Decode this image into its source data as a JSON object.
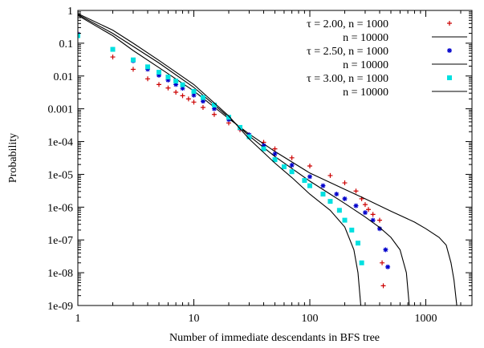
{
  "chart_data": {
    "type": "scatter",
    "title": "",
    "xlabel": "Number of immediate descendants in BFS tree",
    "ylabel": "Probability",
    "xscale": "log",
    "yscale": "log",
    "xlim": [
      1,
      2500
    ],
    "ylim": [
      1e-09,
      1
    ],
    "x_ticks": [
      {
        "value": 1,
        "label": "1"
      },
      {
        "value": 10,
        "label": "10"
      },
      {
        "value": 100,
        "label": "100"
      },
      {
        "value": 1000,
        "label": "1000"
      }
    ],
    "y_ticks": [
      {
        "value": 1,
        "label": "1"
      },
      {
        "value": 0.1,
        "label": "0.1"
      },
      {
        "value": 0.01,
        "label": "0.01"
      },
      {
        "value": 0.001,
        "label": "0.001"
      },
      {
        "value": 0.0001,
        "label": "1e-04"
      },
      {
        "value": 1e-05,
        "label": "1e-05"
      },
      {
        "value": 1e-06,
        "label": "1e-06"
      },
      {
        "value": 1e-07,
        "label": "1e-07"
      },
      {
        "value": 1e-08,
        "label": "1e-08"
      },
      {
        "value": 1e-09,
        "label": "1e-09"
      }
    ],
    "legend_position": "top-right",
    "grid": false,
    "series": [
      {
        "name": "τ = 2.00, n = 1000",
        "marker": "plus",
        "color": "#cc0000",
        "points": [
          [
            1,
            0.2
          ],
          [
            2,
            0.038
          ],
          [
            3,
            0.016
          ],
          [
            4,
            0.0082
          ],
          [
            5,
            0.0055
          ],
          [
            6,
            0.0043
          ],
          [
            7,
            0.0032
          ],
          [
            8,
            0.0025
          ],
          [
            9,
            0.002
          ],
          [
            10,
            0.0016
          ],
          [
            12,
            0.0011
          ],
          [
            15,
            0.00067
          ],
          [
            20,
            0.00037
          ],
          [
            25,
            0.00023
          ],
          [
            30,
            0.00016
          ],
          [
            40,
            9.5e-05
          ],
          [
            50,
            6e-05
          ],
          [
            70,
            3.2e-05
          ],
          [
            100,
            1.8e-05
          ],
          [
            150,
            9.2e-06
          ],
          [
            200,
            5.5e-06
          ],
          [
            250,
            3.1e-06
          ],
          [
            280,
            1.8e-06
          ],
          [
            300,
            1.2e-06
          ],
          [
            320,
            8.5e-07
          ],
          [
            350,
            6e-07
          ],
          [
            400,
            4e-07
          ],
          [
            420,
            2e-08
          ],
          [
            430,
            4e-09
          ]
        ]
      },
      {
        "name": "n = 10000",
        "marker": "line",
        "color": "#000000",
        "points": [
          [
            1,
            0.7
          ],
          [
            2,
            0.17
          ],
          [
            3,
            0.06
          ],
          [
            5,
            0.018
          ],
          [
            10,
            0.0035
          ],
          [
            20,
            0.0005
          ],
          [
            30,
            0.00017
          ],
          [
            50,
            5e-05
          ],
          [
            100,
            1.1e-05
          ],
          [
            200,
            3.5e-06
          ],
          [
            300,
            1.8e-06
          ],
          [
            500,
            7.5e-07
          ],
          [
            800,
            3.5e-07
          ],
          [
            1000,
            2.2e-07
          ],
          [
            1300,
            1.2e-07
          ],
          [
            1500,
            7e-08
          ],
          [
            1650,
            2e-08
          ],
          [
            1750,
            6e-09
          ],
          [
            1850,
            1e-09
          ]
        ]
      },
      {
        "name": "τ = 2.50, n = 1000",
        "marker": "star",
        "color": "#0000cc",
        "points": [
          [
            1,
            0.19
          ],
          [
            2,
            0.065
          ],
          [
            3,
            0.029
          ],
          [
            4,
            0.016
          ],
          [
            5,
            0.0105
          ],
          [
            6,
            0.0075
          ],
          [
            7,
            0.0055
          ],
          [
            8,
            0.0042
          ],
          [
            10,
            0.0026
          ],
          [
            12,
            0.0017
          ],
          [
            15,
            0.001
          ],
          [
            20,
            0.00047
          ],
          [
            25,
            0.00026
          ],
          [
            30,
            0.00016
          ],
          [
            40,
            7.5e-05
          ],
          [
            50,
            4.2e-05
          ],
          [
            70,
            1.9e-05
          ],
          [
            100,
            8.5e-06
          ],
          [
            130,
            4.5e-06
          ],
          [
            170,
            2.5e-06
          ],
          [
            200,
            1.8e-06
          ],
          [
            250,
            1.1e-06
          ],
          [
            300,
            6.8e-07
          ],
          [
            350,
            4e-07
          ],
          [
            400,
            2.2e-07
          ],
          [
            450,
            5e-08
          ],
          [
            470,
            1.5e-08
          ]
        ]
      },
      {
        "name": "n = 10000",
        "marker": "line",
        "color": "#000000",
        "points": [
          [
            1,
            0.75
          ],
          [
            2,
            0.2
          ],
          [
            3,
            0.08
          ],
          [
            5,
            0.025
          ],
          [
            10,
            0.0045
          ],
          [
            20,
            0.00055
          ],
          [
            30,
            0.00015
          ],
          [
            50,
            3.5e-05
          ],
          [
            100,
            6.2e-06
          ],
          [
            150,
            2.5e-06
          ],
          [
            200,
            1.3e-06
          ],
          [
            300,
            5e-07
          ],
          [
            400,
            2.4e-07
          ],
          [
            500,
            1.2e-07
          ],
          [
            600,
            5e-08
          ],
          [
            680,
            1e-08
          ],
          [
            720,
            1e-09
          ]
        ]
      },
      {
        "name": "τ = 3.00, n = 1000",
        "marker": "square",
        "color": "#00e0e0",
        "points": [
          [
            1,
            0.17
          ],
          [
            2,
            0.065
          ],
          [
            3,
            0.031
          ],
          [
            4,
            0.019
          ],
          [
            5,
            0.013
          ],
          [
            6,
            0.0093
          ],
          [
            7,
            0.007
          ],
          [
            8,
            0.0054
          ],
          [
            10,
            0.0034
          ],
          [
            12,
            0.0022
          ],
          [
            15,
            0.0013
          ],
          [
            20,
            0.00055
          ],
          [
            25,
            0.00027
          ],
          [
            30,
            0.00014
          ],
          [
            40,
            6e-05
          ],
          [
            50,
            2.8e-05
          ],
          [
            60,
            1.7e-05
          ],
          [
            70,
            1.2e-05
          ],
          [
            90,
            6.5e-06
          ],
          [
            100,
            4.5e-06
          ],
          [
            130,
            2.5e-06
          ],
          [
            150,
            1.5e-06
          ],
          [
            180,
            8e-07
          ],
          [
            200,
            4e-07
          ],
          [
            230,
            2e-07
          ],
          [
            260,
            8e-08
          ],
          [
            280,
            2e-08
          ]
        ]
      },
      {
        "name": "n = 10000",
        "marker": "line",
        "color": "#000000",
        "points": [
          [
            1,
            0.8
          ],
          [
            2,
            0.25
          ],
          [
            3,
            0.1
          ],
          [
            5,
            0.03
          ],
          [
            10,
            0.0055
          ],
          [
            20,
            0.0006
          ],
          [
            30,
            0.00012
          ],
          [
            50,
            2.2e-05
          ],
          [
            70,
            8e-06
          ],
          [
            100,
            2.5e-06
          ],
          [
            150,
            8e-07
          ],
          [
            200,
            2.5e-07
          ],
          [
            240,
            5e-08
          ],
          [
            260,
            1e-08
          ],
          [
            275,
            1e-09
          ]
        ]
      }
    ]
  }
}
